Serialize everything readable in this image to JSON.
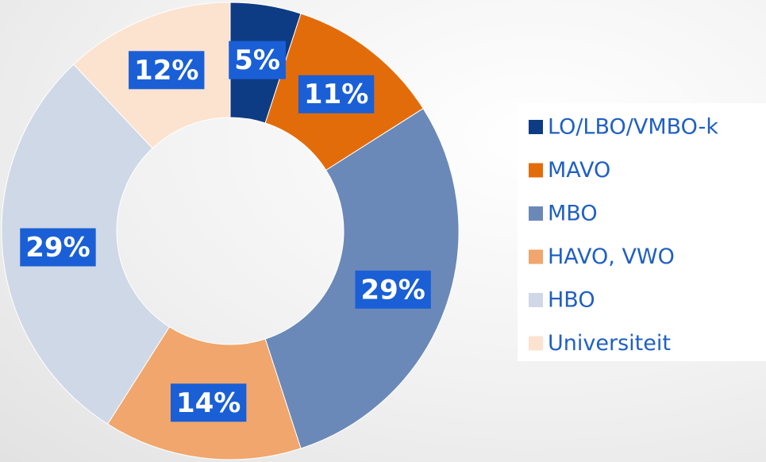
{
  "chart_data": {
    "type": "donut",
    "categories": [
      "LO/LBO/VMBO-k",
      "MAVO",
      "MBO",
      "HAVO, VWO",
      "HBO",
      "Universiteit"
    ],
    "values": [
      5,
      11,
      29,
      14,
      29,
      12
    ],
    "value_labels": [
      "5%",
      "11%",
      "29%",
      "14%",
      "29%",
      "12%"
    ],
    "colors": [
      "#0d3c84",
      "#e36c0a",
      "#6a89b8",
      "#f0a66c",
      "#cfd8e6",
      "#fbe3cf"
    ],
    "legend": "right"
  }
}
